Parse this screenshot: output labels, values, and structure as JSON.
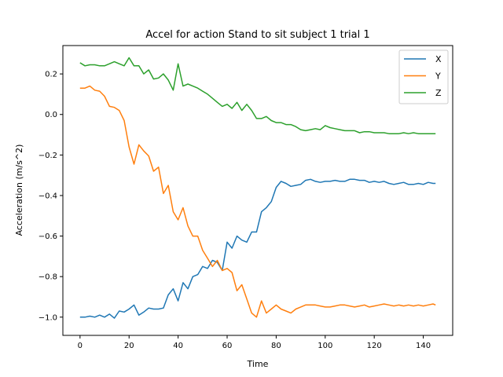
{
  "chart_data": {
    "type": "line",
    "title": "Accel for action Stand to sit subject 1 trial 1",
    "xlabel": "Time",
    "ylabel": "Acceleration (m/s^2)",
    "xlim": [
      -7,
      152
    ],
    "ylim": [
      -1.09,
      0.34
    ],
    "xticks": [
      0,
      20,
      40,
      60,
      80,
      100,
      120,
      140
    ],
    "yticks": [
      -1.0,
      -0.8,
      -0.6,
      -0.4,
      -0.2,
      0.0,
      0.2
    ],
    "ytick_labels": [
      "−1.0",
      "−0.8",
      "−0.6",
      "−0.4",
      "−0.2",
      "0.0",
      "0.2"
    ],
    "grid": false,
    "legend_position": "top-right",
    "series": [
      {
        "name": "X",
        "color": "#1f77b4",
        "x": [
          0,
          2,
          4,
          6,
          8,
          10,
          12,
          14,
          16,
          18,
          20,
          22,
          24,
          26,
          28,
          30,
          32,
          34,
          36,
          38,
          40,
          42,
          44,
          46,
          48,
          50,
          52,
          54,
          56,
          58,
          60,
          62,
          64,
          66,
          68,
          70,
          72,
          74,
          76,
          78,
          80,
          82,
          84,
          86,
          88,
          90,
          92,
          94,
          96,
          98,
          100,
          102,
          104,
          106,
          108,
          110,
          112,
          114,
          116,
          118,
          120,
          122,
          124,
          126,
          128,
          130,
          132,
          134,
          136,
          138,
          140,
          142,
          144,
          145
        ],
        "values": [
          -1.0,
          -1.0,
          -0.995,
          -1.0,
          -0.99,
          -1.0,
          -0.985,
          -1.005,
          -0.97,
          -0.975,
          -0.96,
          -0.94,
          -0.99,
          -0.975,
          -0.955,
          -0.96,
          -0.96,
          -0.955,
          -0.89,
          -0.86,
          -0.92,
          -0.83,
          -0.86,
          -0.8,
          -0.79,
          -0.75,
          -0.76,
          -0.72,
          -0.73,
          -0.77,
          -0.63,
          -0.66,
          -0.6,
          -0.62,
          -0.63,
          -0.58,
          -0.58,
          -0.48,
          -0.46,
          -0.43,
          -0.36,
          -0.33,
          -0.34,
          -0.355,
          -0.35,
          -0.345,
          -0.325,
          -0.32,
          -0.33,
          -0.335,
          -0.33,
          -0.33,
          -0.325,
          -0.33,
          -0.33,
          -0.32,
          -0.32,
          -0.325,
          -0.325,
          -0.335,
          -0.33,
          -0.335,
          -0.33,
          -0.34,
          -0.345,
          -0.34,
          -0.335,
          -0.345,
          -0.345,
          -0.34,
          -0.345,
          -0.335,
          -0.34,
          -0.34
        ]
      },
      {
        "name": "Y",
        "color": "#ff7f0e",
        "x": [
          0,
          2,
          4,
          6,
          8,
          10,
          12,
          14,
          16,
          18,
          20,
          22,
          24,
          26,
          28,
          30,
          32,
          34,
          36,
          38,
          40,
          42,
          44,
          46,
          48,
          50,
          52,
          54,
          56,
          58,
          60,
          62,
          64,
          66,
          68,
          70,
          72,
          74,
          76,
          78,
          80,
          82,
          84,
          86,
          88,
          90,
          92,
          94,
          96,
          98,
          100,
          102,
          104,
          106,
          108,
          110,
          112,
          114,
          116,
          118,
          120,
          122,
          124,
          126,
          128,
          130,
          132,
          134,
          136,
          138,
          140,
          142,
          144,
          145
        ],
        "values": [
          0.13,
          0.13,
          0.14,
          0.12,
          0.115,
          0.09,
          0.04,
          0.035,
          0.02,
          -0.03,
          -0.16,
          -0.245,
          -0.15,
          -0.18,
          -0.205,
          -0.28,
          -0.26,
          -0.39,
          -0.35,
          -0.48,
          -0.52,
          -0.46,
          -0.55,
          -0.6,
          -0.6,
          -0.67,
          -0.71,
          -0.75,
          -0.72,
          -0.77,
          -0.76,
          -0.78,
          -0.87,
          -0.84,
          -0.91,
          -0.98,
          -1.0,
          -0.92,
          -0.98,
          -0.96,
          -0.94,
          -0.96,
          -0.97,
          -0.98,
          -0.96,
          -0.95,
          -0.94,
          -0.94,
          -0.94,
          -0.945,
          -0.95,
          -0.95,
          -0.945,
          -0.94,
          -0.94,
          -0.945,
          -0.95,
          -0.945,
          -0.94,
          -0.95,
          -0.945,
          -0.94,
          -0.935,
          -0.94,
          -0.945,
          -0.94,
          -0.945,
          -0.94,
          -0.945,
          -0.94,
          -0.945,
          -0.94,
          -0.935,
          -0.94
        ]
      },
      {
        "name": "Z",
        "color": "#2ca02c",
        "x": [
          0,
          2,
          4,
          6,
          8,
          10,
          12,
          14,
          16,
          18,
          20,
          22,
          24,
          26,
          28,
          30,
          32,
          34,
          36,
          38,
          40,
          42,
          44,
          46,
          48,
          50,
          52,
          54,
          56,
          58,
          60,
          62,
          64,
          66,
          68,
          70,
          72,
          74,
          76,
          78,
          80,
          82,
          84,
          86,
          88,
          90,
          92,
          94,
          96,
          98,
          100,
          102,
          104,
          106,
          108,
          110,
          112,
          114,
          116,
          118,
          120,
          122,
          124,
          126,
          128,
          130,
          132,
          134,
          136,
          138,
          140,
          142,
          144,
          145
        ],
        "values": [
          0.255,
          0.24,
          0.245,
          0.245,
          0.24,
          0.24,
          0.25,
          0.26,
          0.25,
          0.24,
          0.28,
          0.24,
          0.24,
          0.2,
          0.22,
          0.175,
          0.18,
          0.2,
          0.17,
          0.12,
          0.25,
          0.14,
          0.15,
          0.14,
          0.13,
          0.115,
          0.1,
          0.08,
          0.06,
          0.04,
          0.05,
          0.03,
          0.06,
          0.02,
          0.05,
          0.02,
          -0.02,
          -0.02,
          -0.01,
          -0.03,
          -0.04,
          -0.04,
          -0.05,
          -0.05,
          -0.06,
          -0.075,
          -0.08,
          -0.075,
          -0.07,
          -0.075,
          -0.055,
          -0.065,
          -0.07,
          -0.075,
          -0.08,
          -0.08,
          -0.08,
          -0.09,
          -0.085,
          -0.085,
          -0.09,
          -0.09,
          -0.09,
          -0.095,
          -0.095,
          -0.095,
          -0.09,
          -0.095,
          -0.09,
          -0.095,
          -0.095,
          -0.095,
          -0.095,
          -0.095
        ]
      }
    ]
  }
}
